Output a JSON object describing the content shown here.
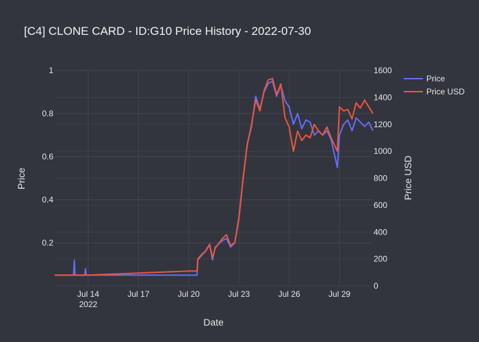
{
  "chart_data": {
    "type": "line",
    "title": "[C4] CLONE CARD - ID:G10 Price History - 2022-07-30",
    "xlabel": "Date",
    "ylabel_left": "Price",
    "ylabel_right": "Price USD",
    "x_ticks": [
      "Jul 14\n2022",
      "Jul 17",
      "Jul 20",
      "Jul 23",
      "Jul 26",
      "Jul 29"
    ],
    "x_tick_dates": [
      "2022-07-14",
      "2022-07-17",
      "2022-07-20",
      "2022-07-23",
      "2022-07-26",
      "2022-07-29"
    ],
    "x_range": [
      "2022-07-12T00:00",
      "2022-07-31T00:00"
    ],
    "ylim_left": [
      0,
      1
    ],
    "ylim_right": [
      0,
      1600
    ],
    "y_ticks_left": [
      "1",
      "0.8",
      "0.6",
      "0.4",
      "0.2"
    ],
    "y_tick_values_left": [
      1,
      0.8,
      0.6,
      0.4,
      0.2
    ],
    "y_ticks_right": [
      "1600",
      "1400",
      "1200",
      "1000",
      "800",
      "600",
      "400",
      "200",
      "0"
    ],
    "y_tick_values_right": [
      1600,
      1400,
      1200,
      1000,
      800,
      600,
      400,
      200,
      0
    ],
    "grid": true,
    "legend": "top-right",
    "series": [
      {
        "name": "Price",
        "axis": "left",
        "color": "#636efa",
        "points": [
          [
            "2022-07-12T00:00",
            0.05
          ],
          [
            "2022-07-13T00:00",
            0.05
          ],
          [
            "2022-07-13T03:00",
            0.05
          ],
          [
            "2022-07-13T04:00",
            0.12
          ],
          [
            "2022-07-13T05:00",
            0.05
          ],
          [
            "2022-07-13T19:00",
            0.05
          ],
          [
            "2022-07-13T20:00",
            0.08
          ],
          [
            "2022-07-13T21:00",
            0.05
          ],
          [
            "2022-07-16T00:00",
            0.05
          ],
          [
            "2022-07-18T00:00",
            0.05
          ],
          [
            "2022-07-20T00:00",
            0.05
          ],
          [
            "2022-07-20T12:00",
            0.05
          ],
          [
            "2022-07-20T13:00",
            0.12
          ],
          [
            "2022-07-20T18:00",
            0.14
          ],
          [
            "2022-07-21T00:00",
            0.16
          ],
          [
            "2022-07-21T06:00",
            0.19
          ],
          [
            "2022-07-21T10:00",
            0.12
          ],
          [
            "2022-07-21T14:00",
            0.18
          ],
          [
            "2022-07-22T00:00",
            0.21
          ],
          [
            "2022-07-22T06:00",
            0.22
          ],
          [
            "2022-07-22T12:00",
            0.18
          ],
          [
            "2022-07-22T18:00",
            0.2
          ],
          [
            "2022-07-23T00:00",
            0.32
          ],
          [
            "2022-07-23T06:00",
            0.5
          ],
          [
            "2022-07-23T12:00",
            0.66
          ],
          [
            "2022-07-23T18:00",
            0.74
          ],
          [
            "2022-07-24T00:00",
            0.88
          ],
          [
            "2022-07-24T06:00",
            0.82
          ],
          [
            "2022-07-24T12:00",
            0.9
          ],
          [
            "2022-07-24T18:00",
            0.94
          ],
          [
            "2022-07-25T00:00",
            0.95
          ],
          [
            "2022-07-25T06:00",
            0.88
          ],
          [
            "2022-07-25T12:00",
            0.93
          ],
          [
            "2022-07-25T18:00",
            0.86
          ],
          [
            "2022-07-26T00:00",
            0.83
          ],
          [
            "2022-07-26T06:00",
            0.75
          ],
          [
            "2022-07-26T12:00",
            0.8
          ],
          [
            "2022-07-26T18:00",
            0.73
          ],
          [
            "2022-07-27T00:00",
            0.77
          ],
          [
            "2022-07-27T06:00",
            0.76
          ],
          [
            "2022-07-27T12:00",
            0.7
          ],
          [
            "2022-07-27T18:00",
            0.72
          ],
          [
            "2022-07-28T00:00",
            0.7
          ],
          [
            "2022-07-28T06:00",
            0.72
          ],
          [
            "2022-07-28T12:00",
            0.68
          ],
          [
            "2022-07-28T21:00",
            0.55
          ],
          [
            "2022-07-29T00:00",
            0.7
          ],
          [
            "2022-07-29T06:00",
            0.75
          ],
          [
            "2022-07-29T12:00",
            0.77
          ],
          [
            "2022-07-29T18:00",
            0.72
          ],
          [
            "2022-07-30T00:00",
            0.78
          ],
          [
            "2022-07-30T06:00",
            0.76
          ],
          [
            "2022-07-30T12:00",
            0.74
          ],
          [
            "2022-07-30T18:00",
            0.76
          ],
          [
            "2022-07-31T00:00",
            0.72
          ]
        ]
      },
      {
        "name": "Price USD",
        "axis": "right",
        "color": "#ef553b",
        "points": [
          [
            "2022-07-12T00:00",
            80
          ],
          [
            "2022-07-13T00:00",
            80
          ],
          [
            "2022-07-13T04:00",
            80
          ],
          [
            "2022-07-13T20:00",
            80
          ],
          [
            "2022-07-16T00:00",
            90
          ],
          [
            "2022-07-18T00:00",
            100
          ],
          [
            "2022-07-20T00:00",
            110
          ],
          [
            "2022-07-20T12:00",
            110
          ],
          [
            "2022-07-20T13:00",
            200
          ],
          [
            "2022-07-20T18:00",
            230
          ],
          [
            "2022-07-21T00:00",
            260
          ],
          [
            "2022-07-21T06:00",
            310
          ],
          [
            "2022-07-21T10:00",
            210
          ],
          [
            "2022-07-21T14:00",
            280
          ],
          [
            "2022-07-22T00:00",
            350
          ],
          [
            "2022-07-22T06:00",
            380
          ],
          [
            "2022-07-22T12:00",
            300
          ],
          [
            "2022-07-22T18:00",
            320
          ],
          [
            "2022-07-23T00:00",
            500
          ],
          [
            "2022-07-23T06:00",
            800
          ],
          [
            "2022-07-23T12:00",
            1050
          ],
          [
            "2022-07-23T18:00",
            1200
          ],
          [
            "2022-07-24T00:00",
            1380
          ],
          [
            "2022-07-24T06:00",
            1300
          ],
          [
            "2022-07-24T12:00",
            1450
          ],
          [
            "2022-07-24T18:00",
            1530
          ],
          [
            "2022-07-25T00:00",
            1540
          ],
          [
            "2022-07-25T06:00",
            1420
          ],
          [
            "2022-07-25T12:00",
            1500
          ],
          [
            "2022-07-25T18:00",
            1250
          ],
          [
            "2022-07-26T00:00",
            1180
          ],
          [
            "2022-07-26T06:00",
            1000
          ],
          [
            "2022-07-26T12:00",
            1150
          ],
          [
            "2022-07-26T18:00",
            1080
          ],
          [
            "2022-07-27T00:00",
            1120
          ],
          [
            "2022-07-27T06:00",
            1100
          ],
          [
            "2022-07-27T12:00",
            1200
          ],
          [
            "2022-07-27T18:00",
            1150
          ],
          [
            "2022-07-28T00:00",
            1120
          ],
          [
            "2022-07-28T06:00",
            1180
          ],
          [
            "2022-07-28T12:00",
            1100
          ],
          [
            "2022-07-28T21:00",
            1000
          ],
          [
            "2022-07-29T00:00",
            1330
          ],
          [
            "2022-07-29T06:00",
            1300
          ],
          [
            "2022-07-29T12:00",
            1310
          ],
          [
            "2022-07-29T18:00",
            1240
          ],
          [
            "2022-07-30T00:00",
            1360
          ],
          [
            "2022-07-30T06:00",
            1320
          ],
          [
            "2022-07-30T12:00",
            1380
          ],
          [
            "2022-07-30T18:00",
            1330
          ],
          [
            "2022-07-31T00:00",
            1280
          ]
        ]
      }
    ]
  }
}
